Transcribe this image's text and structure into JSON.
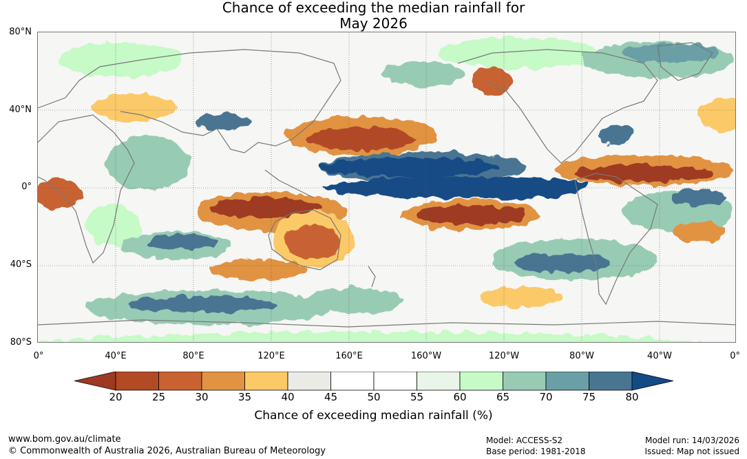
{
  "title": {
    "line1": "Chance of exceeding the median rainfall for",
    "line2": "May 2026"
  },
  "map": {
    "latitude_labels": [
      "80°N",
      "40°N",
      "0°",
      "40°S",
      "80°S"
    ],
    "longitude_labels": [
      "0°",
      "40°E",
      "80°E",
      "120°E",
      "160°E",
      "160°W",
      "120°W",
      "80°W",
      "40°W",
      "0°"
    ],
    "colors": {
      "p20": "#9e3a21",
      "p25": "#b24a25",
      "p30": "#c96231",
      "p35": "#e19343",
      "p40": "#fcc967",
      "p45": "#eaeae6",
      "p50": "#ffffff",
      "p55": "#ffffff",
      "p60": "#e9f5e8",
      "p65": "#c6fac7",
      "p70": "#98cbb4",
      "p75": "#6a9fa6",
      "p80": "#487592",
      "p80plus": "#134b86",
      "coast": "#777777"
    }
  },
  "colorbar": {
    "ticks": [
      "20",
      "25",
      "30",
      "35",
      "40",
      "45",
      "50",
      "55",
      "60",
      "65",
      "70",
      "75",
      "80"
    ],
    "label": "Chance of exceeding median rainfall (%)",
    "segment_colors": [
      "#b24a25",
      "#c96231",
      "#e19343",
      "#fcc967",
      "#eaeae6",
      "#ffffff",
      "#ffffff",
      "#e9f5e8",
      "#c6fac7",
      "#98cbb4",
      "#6a9fa6",
      "#487592"
    ],
    "low_end_color": "#9e3a21",
    "high_end_color": "#134b86"
  },
  "footer": {
    "website": "www.bom.gov.au/climate",
    "copyright": "© Commonwealth of Australia 2026, Australian Bureau of Meteorology",
    "model": "Model: ACCESS-S2",
    "base_period": "Base period: 1981-2018",
    "model_run": "Model run: 14/03/2026",
    "issued": "Issued: Map not issued"
  }
}
